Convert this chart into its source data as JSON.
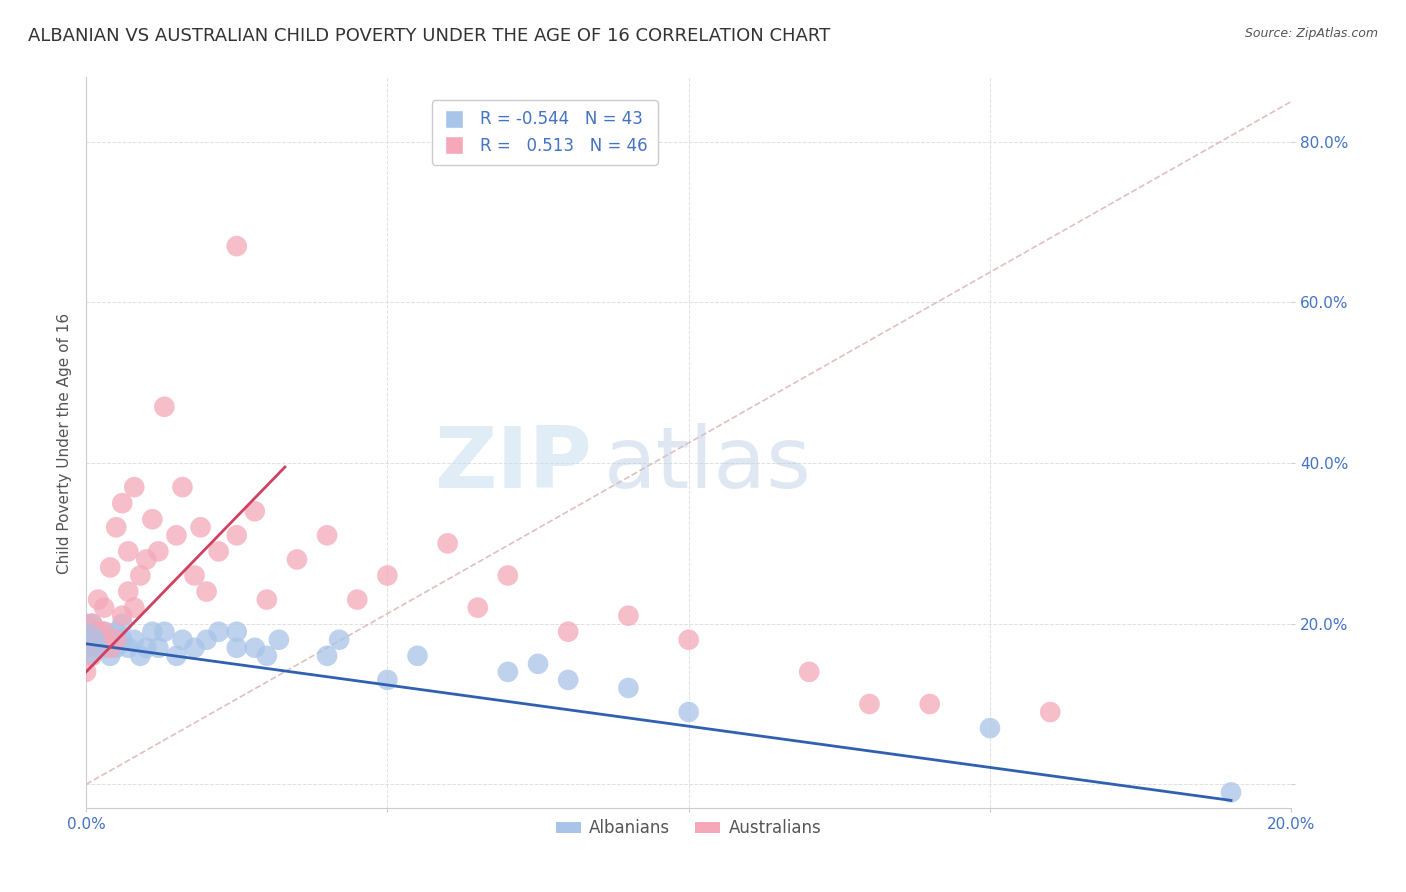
{
  "title": "ALBANIAN VS AUSTRALIAN CHILD POVERTY UNDER THE AGE OF 16 CORRELATION CHART",
  "source": "Source: ZipAtlas.com",
  "ylabel": "Child Poverty Under the Age of 16",
  "watermark_zip": "ZIP",
  "watermark_atlas": "atlas",
  "legend_blue_r": "-0.544",
  "legend_blue_n": "43",
  "legend_pink_r": "0.513",
  "legend_pink_n": "46",
  "blue_color": "#a8c4e8",
  "pink_color": "#f4a8b8",
  "blue_line_color": "#3060b0",
  "pink_line_color": "#d04060",
  "diag_color": "#d8b0b0",
  "xmin": 0.0,
  "xmax": 0.2,
  "ymin": -0.03,
  "ymax": 0.88,
  "blue_scatter_x": [
    0.0,
    0.0,
    0.0,
    0.001,
    0.001,
    0.002,
    0.002,
    0.003,
    0.003,
    0.004,
    0.004,
    0.005,
    0.005,
    0.006,
    0.006,
    0.007,
    0.008,
    0.009,
    0.01,
    0.011,
    0.012,
    0.013,
    0.015,
    0.016,
    0.018,
    0.02,
    0.022,
    0.025,
    0.025,
    0.028,
    0.03,
    0.032,
    0.04,
    0.042,
    0.05,
    0.055,
    0.07,
    0.075,
    0.08,
    0.09,
    0.1,
    0.15,
    0.19
  ],
  "blue_scatter_y": [
    0.17,
    0.19,
    0.2,
    0.18,
    0.2,
    0.17,
    0.19,
    0.19,
    0.17,
    0.18,
    0.16,
    0.17,
    0.19,
    0.18,
    0.2,
    0.17,
    0.18,
    0.16,
    0.17,
    0.19,
    0.17,
    0.19,
    0.16,
    0.18,
    0.17,
    0.18,
    0.19,
    0.17,
    0.19,
    0.17,
    0.16,
    0.18,
    0.16,
    0.18,
    0.13,
    0.16,
    0.14,
    0.15,
    0.13,
    0.12,
    0.09,
    0.07,
    -0.01
  ],
  "pink_scatter_x": [
    0.0,
    0.0,
    0.001,
    0.001,
    0.002,
    0.002,
    0.003,
    0.003,
    0.004,
    0.004,
    0.005,
    0.005,
    0.006,
    0.006,
    0.007,
    0.007,
    0.008,
    0.008,
    0.009,
    0.01,
    0.011,
    0.012,
    0.013,
    0.015,
    0.016,
    0.018,
    0.019,
    0.02,
    0.022,
    0.025,
    0.028,
    0.03,
    0.035,
    0.04,
    0.045,
    0.05,
    0.06,
    0.065,
    0.07,
    0.08,
    0.09,
    0.1,
    0.12,
    0.13,
    0.14,
    0.16
  ],
  "pink_scatter_y": [
    0.14,
    0.17,
    0.16,
    0.2,
    0.19,
    0.23,
    0.19,
    0.22,
    0.17,
    0.27,
    0.18,
    0.32,
    0.21,
    0.35,
    0.24,
    0.29,
    0.22,
    0.37,
    0.26,
    0.28,
    0.33,
    0.29,
    0.47,
    0.31,
    0.37,
    0.26,
    0.32,
    0.24,
    0.29,
    0.31,
    0.34,
    0.23,
    0.28,
    0.31,
    0.23,
    0.26,
    0.3,
    0.22,
    0.26,
    0.19,
    0.21,
    0.18,
    0.14,
    0.1,
    0.1,
    0.09
  ],
  "pink_outlier_x": [
    0.025
  ],
  "pink_outlier_y": [
    0.67
  ],
  "blue_line_x0": 0.0,
  "blue_line_y0": 0.175,
  "blue_line_x1": 0.19,
  "blue_line_y1": -0.02,
  "pink_line_x0": 0.0,
  "pink_line_y0": 0.14,
  "pink_line_x1": 0.033,
  "pink_line_y1": 0.395,
  "ytick_vals": [
    0.0,
    0.2,
    0.4,
    0.6,
    0.8
  ],
  "ytick_labels": [
    "",
    "20.0%",
    "40.0%",
    "60.0%",
    "80.0%"
  ],
  "xtick_vals": [
    0.0,
    0.05,
    0.1,
    0.15,
    0.2
  ],
  "xtick_labels": [
    "0.0%",
    "",
    "",
    "",
    "20.0%"
  ],
  "grid_color": "#d8d8d8",
  "title_fontsize": 13,
  "label_fontsize": 11,
  "tick_fontsize": 11,
  "tick_color": "#4472c4",
  "legend_label_color": "#4472c4",
  "bottom_legend_color": "#555555"
}
